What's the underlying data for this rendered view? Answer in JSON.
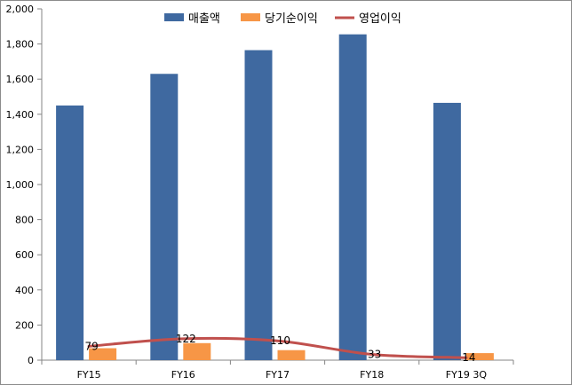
{
  "chart_data": {
    "type": "bar",
    "categories": [
      "FY15",
      "FY16",
      "FY17",
      "FY18",
      "FY19 3Q"
    ],
    "ylim": [
      0,
      2000
    ],
    "yticks": [
      0,
      200,
      400,
      600,
      800,
      1000,
      1200,
      1400,
      1600,
      1800,
      2000
    ],
    "ytick_labels": [
      "0",
      "200",
      "400",
      "600",
      "800",
      "1,000",
      "1,200",
      "1,400",
      "1,600",
      "1,800",
      "2,000"
    ],
    "grid": false,
    "legend_position": "top",
    "series": [
      {
        "name": "매출액",
        "kind": "bar",
        "color": "#3f69a0",
        "values": [
          1450,
          1630,
          1765,
          1855,
          1465
        ]
      },
      {
        "name": "당기순이익",
        "kind": "bar",
        "color": "#f79646",
        "values": [
          68,
          97,
          57,
          0,
          40
        ]
      },
      {
        "name": "영업이익",
        "kind": "line",
        "color": "#c0504d",
        "values": [
          79,
          122,
          110,
          33,
          14
        ],
        "data_labels": [
          "79",
          "122",
          "110",
          "33",
          "14"
        ]
      }
    ]
  }
}
